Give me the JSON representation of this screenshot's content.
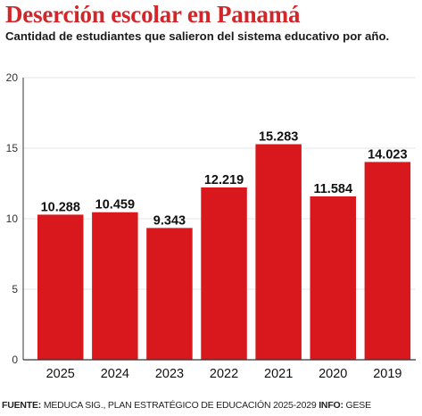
{
  "header": {
    "title": "Deserción escolar en Panamá",
    "subtitle": "Cantidad de estudiantes que salieron del sistema educativo por año."
  },
  "footer": {
    "source_label": "FUENTE:",
    "source_text": "MEDUCA SIG., PLAN ESTRATÉGICO DE EDUCACIÓN 2025-2029",
    "info_label": "INFO:",
    "info_text": "GESE"
  },
  "colors": {
    "bar": "#d8181c",
    "title": "#d2262a",
    "grid": "#e6e6e6",
    "axis": "#333333"
  },
  "chart_data": {
    "type": "bar",
    "categories": [
      "2025",
      "2024",
      "2023",
      "2022",
      "2021",
      "2020",
      "2019"
    ],
    "values": [
      10.288,
      10.459,
      9.343,
      12.219,
      15.283,
      11.584,
      14.023
    ],
    "value_labels": [
      "10.288",
      "10.459",
      "9.343",
      "12.219",
      "15.283",
      "11.584",
      "14.023"
    ],
    "ylim": [
      0,
      20
    ],
    "yticks": [
      0,
      5,
      10,
      15,
      20
    ],
    "grid": true,
    "title": "Deserción escolar en Panamá",
    "subtitle": "Cantidad de estudiantes que salieron del sistema educativo por año.",
    "xlabel": "",
    "ylabel": ""
  }
}
